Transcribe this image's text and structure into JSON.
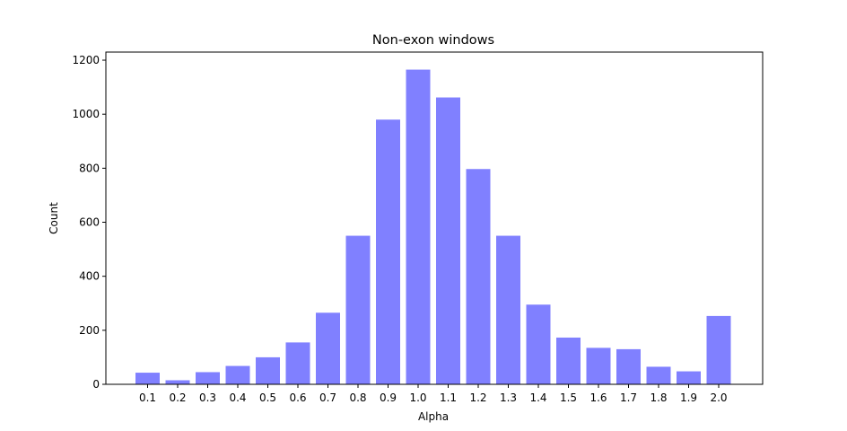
{
  "chart_data": {
    "type": "bar",
    "title": "Non-exon windows",
    "xlabel": "Alpha",
    "ylabel": "Count",
    "categories": [
      "0.1",
      "0.2",
      "0.3",
      "0.4",
      "0.5",
      "0.6",
      "0.7",
      "0.8",
      "0.9",
      "1.0",
      "1.1",
      "1.2",
      "1.3",
      "1.4",
      "1.5",
      "1.6",
      "1.7",
      "1.8",
      "1.9",
      "2.0"
    ],
    "values": [
      43,
      15,
      45,
      68,
      100,
      155,
      265,
      550,
      980,
      1165,
      1062,
      797,
      550,
      295,
      173,
      135,
      130,
      65,
      48,
      253
    ],
    "ylim": [
      0,
      1230
    ],
    "yticks": [
      0,
      200,
      400,
      600,
      800,
      1000,
      1200
    ],
    "bar_color": "#8080ff",
    "grid": false,
    "legend": "none"
  }
}
